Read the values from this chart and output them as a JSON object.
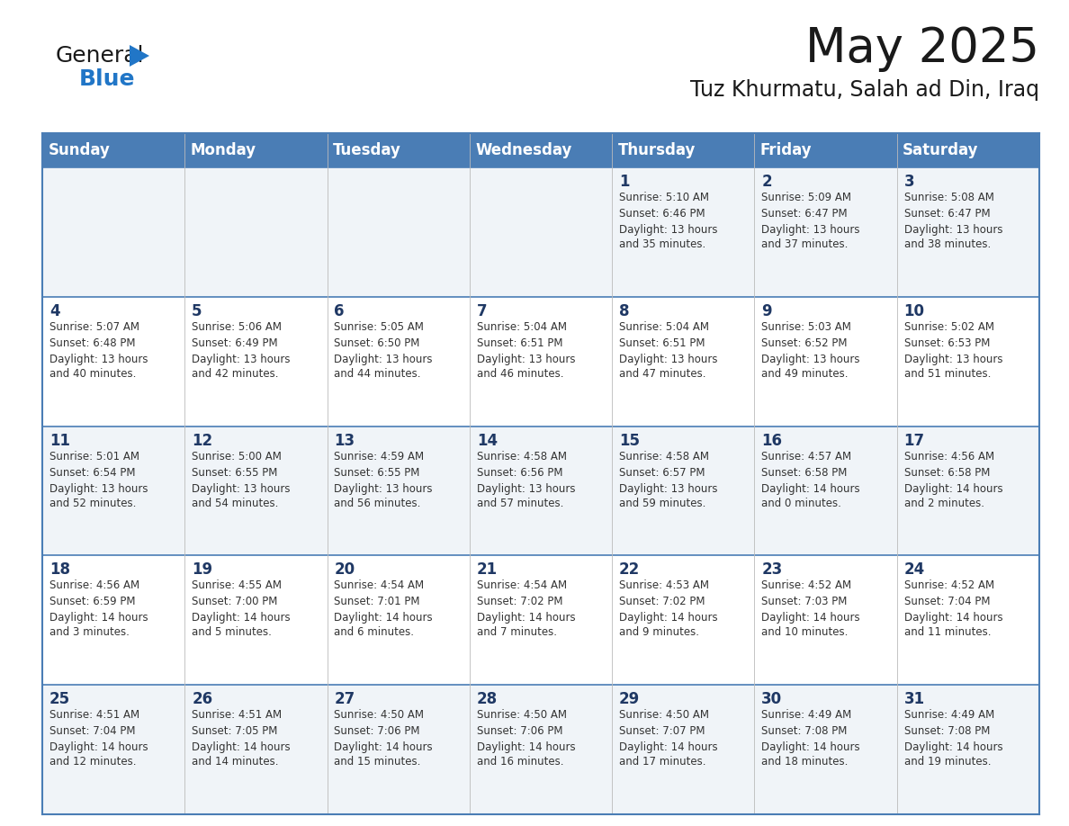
{
  "title": "May 2025",
  "subtitle": "Tuz Khurmatu, Salah ad Din, Iraq",
  "days_of_week": [
    "Sunday",
    "Monday",
    "Tuesday",
    "Wednesday",
    "Thursday",
    "Friday",
    "Saturday"
  ],
  "header_bg": "#4A7DB5",
  "header_text": "#FFFFFF",
  "row_bg_odd": "#FFFFFF",
  "row_bg_even": "#F0F4F8",
  "day_number_color": "#1F3864",
  "text_color": "#333333",
  "line_color": "#4A7DB5",
  "calendar_data": [
    [
      {
        "day": "",
        "sunrise": "",
        "sunset": "",
        "daylight": ""
      },
      {
        "day": "",
        "sunrise": "",
        "sunset": "",
        "daylight": ""
      },
      {
        "day": "",
        "sunrise": "",
        "sunset": "",
        "daylight": ""
      },
      {
        "day": "",
        "sunrise": "",
        "sunset": "",
        "daylight": ""
      },
      {
        "day": "1",
        "sunrise": "5:10 AM",
        "sunset": "6:46 PM",
        "daylight": "13 hours\nand 35 minutes."
      },
      {
        "day": "2",
        "sunrise": "5:09 AM",
        "sunset": "6:47 PM",
        "daylight": "13 hours\nand 37 minutes."
      },
      {
        "day": "3",
        "sunrise": "5:08 AM",
        "sunset": "6:47 PM",
        "daylight": "13 hours\nand 38 minutes."
      }
    ],
    [
      {
        "day": "4",
        "sunrise": "5:07 AM",
        "sunset": "6:48 PM",
        "daylight": "13 hours\nand 40 minutes."
      },
      {
        "day": "5",
        "sunrise": "5:06 AM",
        "sunset": "6:49 PM",
        "daylight": "13 hours\nand 42 minutes."
      },
      {
        "day": "6",
        "sunrise": "5:05 AM",
        "sunset": "6:50 PM",
        "daylight": "13 hours\nand 44 minutes."
      },
      {
        "day": "7",
        "sunrise": "5:04 AM",
        "sunset": "6:51 PM",
        "daylight": "13 hours\nand 46 minutes."
      },
      {
        "day": "8",
        "sunrise": "5:04 AM",
        "sunset": "6:51 PM",
        "daylight": "13 hours\nand 47 minutes."
      },
      {
        "day": "9",
        "sunrise": "5:03 AM",
        "sunset": "6:52 PM",
        "daylight": "13 hours\nand 49 minutes."
      },
      {
        "day": "10",
        "sunrise": "5:02 AM",
        "sunset": "6:53 PM",
        "daylight": "13 hours\nand 51 minutes."
      }
    ],
    [
      {
        "day": "11",
        "sunrise": "5:01 AM",
        "sunset": "6:54 PM",
        "daylight": "13 hours\nand 52 minutes."
      },
      {
        "day": "12",
        "sunrise": "5:00 AM",
        "sunset": "6:55 PM",
        "daylight": "13 hours\nand 54 minutes."
      },
      {
        "day": "13",
        "sunrise": "4:59 AM",
        "sunset": "6:55 PM",
        "daylight": "13 hours\nand 56 minutes."
      },
      {
        "day": "14",
        "sunrise": "4:58 AM",
        "sunset": "6:56 PM",
        "daylight": "13 hours\nand 57 minutes."
      },
      {
        "day": "15",
        "sunrise": "4:58 AM",
        "sunset": "6:57 PM",
        "daylight": "13 hours\nand 59 minutes."
      },
      {
        "day": "16",
        "sunrise": "4:57 AM",
        "sunset": "6:58 PM",
        "daylight": "14 hours\nand 0 minutes."
      },
      {
        "day": "17",
        "sunrise": "4:56 AM",
        "sunset": "6:58 PM",
        "daylight": "14 hours\nand 2 minutes."
      }
    ],
    [
      {
        "day": "18",
        "sunrise": "4:56 AM",
        "sunset": "6:59 PM",
        "daylight": "14 hours\nand 3 minutes."
      },
      {
        "day": "19",
        "sunrise": "4:55 AM",
        "sunset": "7:00 PM",
        "daylight": "14 hours\nand 5 minutes."
      },
      {
        "day": "20",
        "sunrise": "4:54 AM",
        "sunset": "7:01 PM",
        "daylight": "14 hours\nand 6 minutes."
      },
      {
        "day": "21",
        "sunrise": "4:54 AM",
        "sunset": "7:02 PM",
        "daylight": "14 hours\nand 7 minutes."
      },
      {
        "day": "22",
        "sunrise": "4:53 AM",
        "sunset": "7:02 PM",
        "daylight": "14 hours\nand 9 minutes."
      },
      {
        "day": "23",
        "sunrise": "4:52 AM",
        "sunset": "7:03 PM",
        "daylight": "14 hours\nand 10 minutes."
      },
      {
        "day": "24",
        "sunrise": "4:52 AM",
        "sunset": "7:04 PM",
        "daylight": "14 hours\nand 11 minutes."
      }
    ],
    [
      {
        "day": "25",
        "sunrise": "4:51 AM",
        "sunset": "7:04 PM",
        "daylight": "14 hours\nand 12 minutes."
      },
      {
        "day": "26",
        "sunrise": "4:51 AM",
        "sunset": "7:05 PM",
        "daylight": "14 hours\nand 14 minutes."
      },
      {
        "day": "27",
        "sunrise": "4:50 AM",
        "sunset": "7:06 PM",
        "daylight": "14 hours\nand 15 minutes."
      },
      {
        "day": "28",
        "sunrise": "4:50 AM",
        "sunset": "7:06 PM",
        "daylight": "14 hours\nand 16 minutes."
      },
      {
        "day": "29",
        "sunrise": "4:50 AM",
        "sunset": "7:07 PM",
        "daylight": "14 hours\nand 17 minutes."
      },
      {
        "day": "30",
        "sunrise": "4:49 AM",
        "sunset": "7:08 PM",
        "daylight": "14 hours\nand 18 minutes."
      },
      {
        "day": "31",
        "sunrise": "4:49 AM",
        "sunset": "7:08 PM",
        "daylight": "14 hours\nand 19 minutes."
      }
    ]
  ],
  "logo_general_color": "#1a1a1a",
  "logo_blue_color": "#2176C7",
  "logo_triangle_color": "#2176C7",
  "title_fontsize": 38,
  "subtitle_fontsize": 17,
  "header_fontsize": 12,
  "day_num_fontsize": 12,
  "cell_text_fontsize": 8.5
}
